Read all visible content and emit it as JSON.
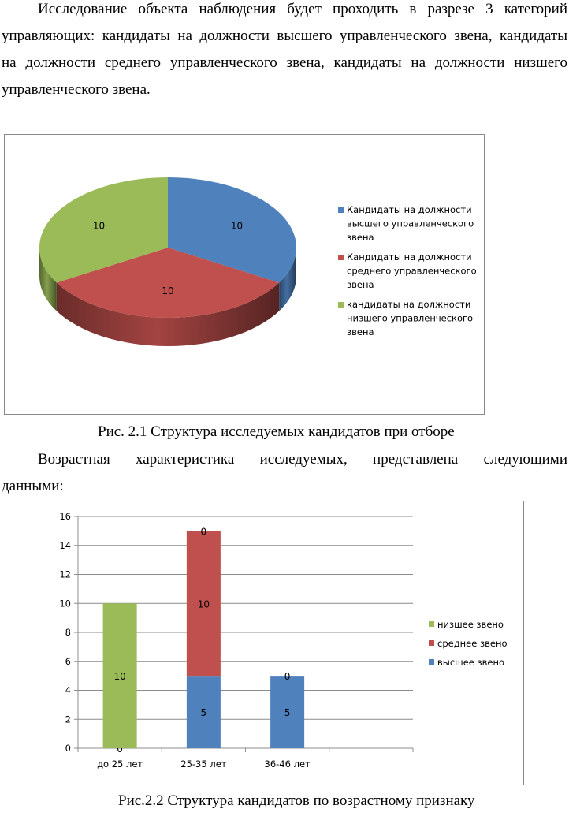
{
  "paragraph1": {
    "line1": "Исследование объекта наблюдения будет проходить в разрезе 3 категорий",
    "line2": "управляющих: кандидаты на должности высшего управленческого звена, кандидаты",
    "line3": "на должности среднего управленческого звена, кандидаты на должности низшего",
    "line4": "управленческого звена."
  },
  "caption1": "Рис. 2.1 Структура исследуемых кандидатов при отборе",
  "paragraph2": {
    "line1": "Возрастная характеристика исследуемых, представлена следующими",
    "line2": "данными:"
  },
  "caption2": "Рис.2.2 Структура кандидатов по возрастному признаку",
  "chart_data": [
    {
      "type": "pie",
      "title": "",
      "labels": [
        "Кандидаты на должности высшего управленческого звена",
        "Кандидаты на должности среднего управленческого звена",
        "кандидаты на должности низшего управленческого звена"
      ],
      "legend_lines": [
        [
          "Кандидаты на должности",
          "высшего управленческого",
          "звена"
        ],
        [
          "Кандидаты на должности",
          "среднего управленческого",
          "звена"
        ],
        [
          "кандидаты на должности",
          "низшего управленческого",
          "звена"
        ]
      ],
      "values": [
        10,
        10,
        10
      ],
      "data_labels": [
        "10",
        "10",
        "10"
      ],
      "colors": [
        "#4F81BD",
        "#C0504D",
        "#9BBB59"
      ],
      "style": "3d",
      "legend_position": "right"
    },
    {
      "type": "bar",
      "stacked": true,
      "title": "",
      "categories": [
        "до 25 лет",
        "25-35 лет",
        "36-46 лет"
      ],
      "series": [
        {
          "name": "высшее звено",
          "values": [
            0,
            5,
            5
          ],
          "labels": [
            "0",
            "5",
            "5"
          ],
          "color": "#4F81BD"
        },
        {
          "name": "среднее звено",
          "values": [
            0,
            10,
            0
          ],
          "labels": [
            "",
            "10",
            "0"
          ],
          "color": "#C0504D"
        },
        {
          "name": "низшее звено",
          "values": [
            10,
            0,
            0
          ],
          "labels": [
            "10",
            "0",
            ""
          ],
          "color": "#9BBB59"
        }
      ],
      "legend_order": [
        "низшее звено",
        "среднее звено",
        "высшее звено"
      ],
      "ylim": [
        0,
        16
      ],
      "yticks": [
        "0",
        "2",
        "4",
        "6",
        "8",
        "10",
        "12",
        "14",
        "16"
      ],
      "grid": true,
      "legend_position": "right"
    }
  ]
}
